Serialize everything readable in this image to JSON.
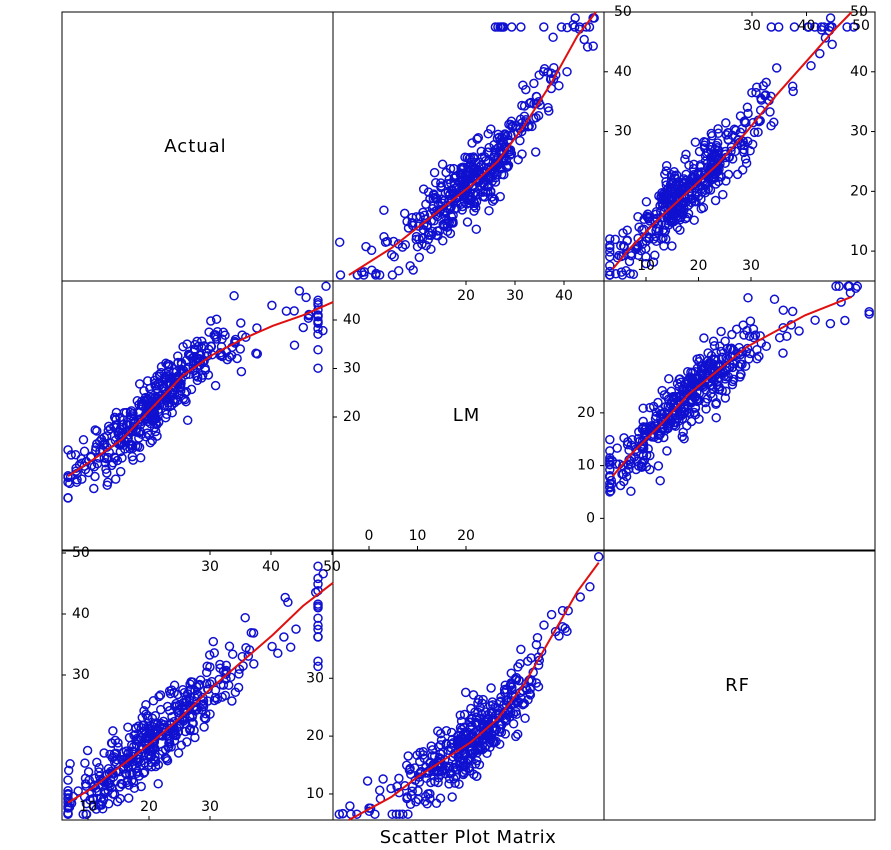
{
  "caption": "Scatter Plot Matrix",
  "colors": {
    "points": "#1010d0",
    "smooth": "#e01010",
    "frame": "#000000",
    "background": "#ffffff"
  },
  "chart_data": {
    "type": "scatter",
    "variables": [
      "Actual",
      "LM",
      "RF"
    ],
    "axis_ranges": {
      "Actual": [
        5,
        50
      ],
      "LM": [
        -6,
        45
      ],
      "RF": [
        5.5,
        52
      ]
    },
    "tick_labels": {
      "Actual": {
        "left_axis": [
          "10",
          "20",
          "30"
        ],
        "right_axis": [
          "10",
          "20",
          "30",
          "40",
          "50"
        ],
        "top_axis": [
          "30",
          "40",
          "50"
        ],
        "bottom_axis": [
          "10",
          "20",
          "30"
        ],
        "left_axis_extra": [
          "30",
          "40",
          "50"
        ]
      },
      "LM": {
        "right_axis": [
          "20",
          "30",
          "40"
        ],
        "left_axis": [
          "0",
          "10",
          "20"
        ],
        "top_axis": [
          "20",
          "30",
          "40"
        ],
        "bottom_axis": [
          "0",
          "10",
          "20"
        ]
      },
      "RF": {
        "left_axis": [
          "30",
          "40",
          "50"
        ],
        "top_axis": [
          "30",
          "40",
          "50"
        ],
        "bottom_axis": [
          "10",
          "20",
          "30"
        ],
        "right_axis": [
          "10",
          "20",
          "30"
        ]
      }
    },
    "panels": [
      {
        "row": "Actual",
        "col": "RF",
        "x": "RF",
        "y": "Actual",
        "smooth": [
          [
            7,
            7
          ],
          [
            10,
            10.5
          ],
          [
            15,
            15.5
          ],
          [
            20,
            20
          ],
          [
            25,
            24.5
          ],
          [
            30,
            30
          ],
          [
            35,
            36
          ],
          [
            40,
            41.5
          ],
          [
            45,
            47
          ],
          [
            48,
            50
          ]
        ]
      },
      {
        "row": "Actual",
        "col": "LM",
        "x": "LM",
        "y": "Actual",
        "smooth": [
          [
            -3,
            6
          ],
          [
            5,
            10.5
          ],
          [
            10,
            14
          ],
          [
            15,
            17.5
          ],
          [
            20,
            21
          ],
          [
            25,
            25
          ],
          [
            30,
            31
          ],
          [
            35,
            38
          ],
          [
            40,
            46
          ],
          [
            43.5,
            50
          ]
        ]
      },
      {
        "row": "LM",
        "col": "RF",
        "x": "RF",
        "y": "LM",
        "smooth": [
          [
            7,
            8
          ],
          [
            10,
            12
          ],
          [
            15,
            17.5
          ],
          [
            20,
            23.5
          ],
          [
            25,
            28
          ],
          [
            30,
            32.5
          ],
          [
            35,
            35.5
          ],
          [
            40,
            38.5
          ],
          [
            48,
            42
          ]
        ]
      },
      {
        "row": "LM",
        "col": "Actual",
        "x": "Actual",
        "y": "LM",
        "smooth": [
          [
            6,
            8
          ],
          [
            10,
            11
          ],
          [
            15,
            15
          ],
          [
            20,
            21
          ],
          [
            25,
            27
          ],
          [
            30,
            31
          ],
          [
            35,
            34
          ],
          [
            40,
            36.5
          ],
          [
            45,
            38.5
          ],
          [
            50,
            41
          ]
        ]
      },
      {
        "row": "RF",
        "col": "LM",
        "x": "LM",
        "y": "RF",
        "smooth": [
          [
            -3,
            5.5
          ],
          [
            5,
            9.5
          ],
          [
            10,
            13
          ],
          [
            15,
            16
          ],
          [
            20,
            19
          ],
          [
            25,
            23
          ],
          [
            30,
            29
          ],
          [
            35,
            37
          ],
          [
            40,
            45
          ],
          [
            44,
            50
          ]
        ]
      },
      {
        "row": "RF",
        "col": "Actual",
        "x": "Actual",
        "y": "RF",
        "smooth": [
          [
            6,
            8.5
          ],
          [
            10,
            11
          ],
          [
            15,
            15
          ],
          [
            20,
            19
          ],
          [
            25,
            23.5
          ],
          [
            30,
            28.5
          ],
          [
            35,
            33
          ],
          [
            40,
            37.5
          ],
          [
            45,
            42.5
          ],
          [
            50,
            46.5
          ]
        ]
      }
    ]
  }
}
